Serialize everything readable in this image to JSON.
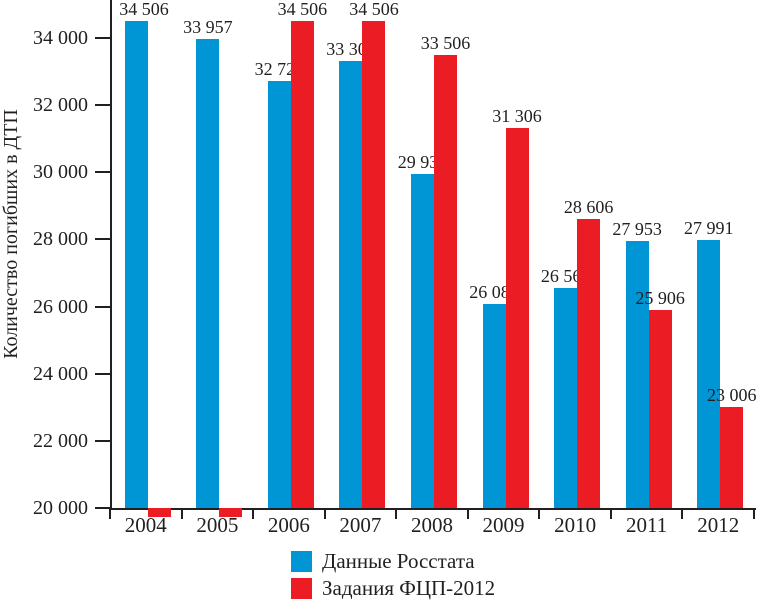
{
  "chart_data": {
    "type": "bar",
    "title": "",
    "xlabel": "",
    "ylabel": "Количество погибших в ДТП",
    "categories": [
      "2004",
      "2005",
      "2006",
      "2007",
      "2008",
      "2009",
      "2010",
      "2011",
      "2012"
    ],
    "series": [
      {
        "name": "Данные Росстата",
        "color": "#0096D6",
        "values": [
          34506,
          33957,
          32724,
          33308,
          29936,
          26084,
          26567,
          27953,
          27991
        ],
        "data_labels": [
          "34 506",
          "33 957",
          "32 724",
          "33 308",
          "29 936",
          "26 084",
          "26 567",
          "27 953",
          "27 991"
        ]
      },
      {
        "name": "Задания ФЦП-2012",
        "color": "#EC1C24",
        "values": [
          null,
          null,
          34506,
          34506,
          33506,
          31306,
          28606,
          25906,
          23006
        ],
        "data_labels": [
          "",
          "",
          "34 506",
          "34 506",
          "33 506",
          "31 306",
          "28 606",
          "25 906",
          "23 006"
        ]
      }
    ],
    "ylim": [
      20000,
      34000
    ],
    "ytick_step": 2000,
    "ytick_labels": [
      "20 000",
      "22 000",
      "24 000",
      "26 000",
      "28 000",
      "30 000",
      "32 000",
      "34 000"
    ],
    "grid": false,
    "legend_position": "bottom-center",
    "axis_color": "#231F20",
    "text_color": "#231F20",
    "below_axis_note": "Red series bars for 2004 and 2005 are drawn as small unlabeled stubs dipping just below the 20 000 baseline"
  }
}
